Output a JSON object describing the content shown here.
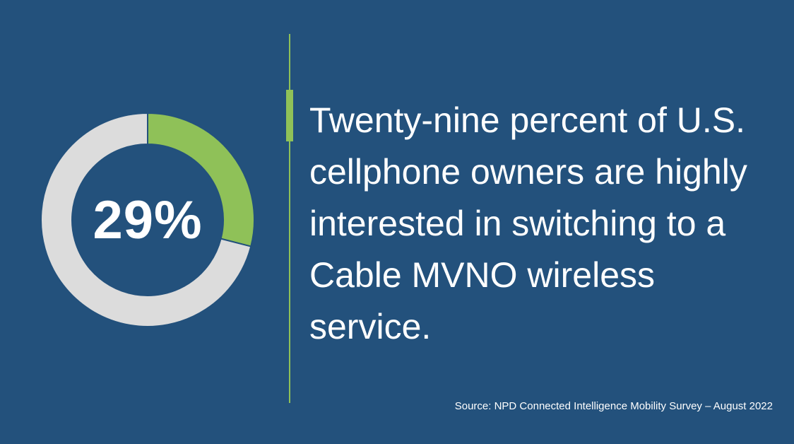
{
  "colors": {
    "background": "#23517c",
    "highlight": "#8fc158",
    "remainder": "#dcdcdc",
    "divider": "#8fc158",
    "text": "#ffffff"
  },
  "chart_data": {
    "type": "pie",
    "donut": true,
    "center_label": "29%",
    "slices": [
      {
        "value": 29,
        "color": "#8fc158"
      },
      {
        "value": 71,
        "color": "#dcdcdc"
      }
    ]
  },
  "headline": "Twenty-nine percent of U.S. cellphone owners are highly interested in switching to a Cable MVNO wireless service.",
  "source": "Source: NPD Connected Intelligence Mobility Survey – August 2022"
}
